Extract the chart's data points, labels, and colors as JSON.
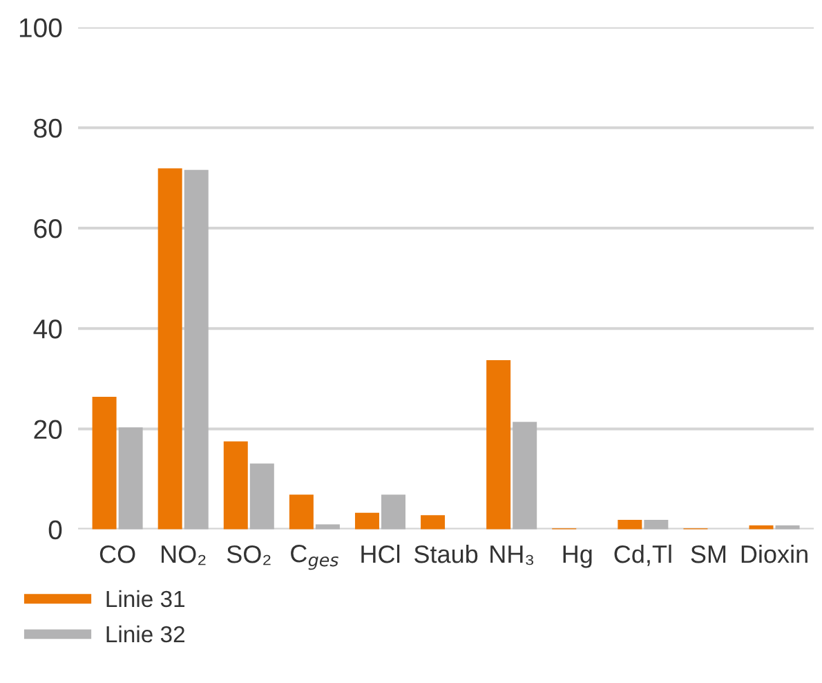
{
  "chart_data": {
    "type": "bar",
    "categories": [
      "CO",
      "NO₂",
      "SO₂",
      "C$_{ges}$",
      "HCl",
      "Staub",
      "NH₃",
      "Hg",
      "Cd,Tl",
      "SM",
      "Dioxin"
    ],
    "series": [
      {
        "name": "Linie 31",
        "color": "#ec7704",
        "values": [
          26.4,
          71.9,
          17.5,
          6.9,
          3.3,
          2.8,
          33.7,
          0.2,
          1.9,
          0.2,
          0.8
        ]
      },
      {
        "name": "Linie 32",
        "color": "#b3b3b4",
        "values": [
          20.3,
          71.6,
          13.1,
          1.0,
          6.9,
          0,
          21.4,
          null,
          1.9,
          null,
          0.8
        ]
      }
    ],
    "ylim": [
      0,
      100
    ],
    "yticks": [
      0,
      20,
      40,
      60,
      80,
      100
    ],
    "grid": "y",
    "legend": "bottom left"
  }
}
